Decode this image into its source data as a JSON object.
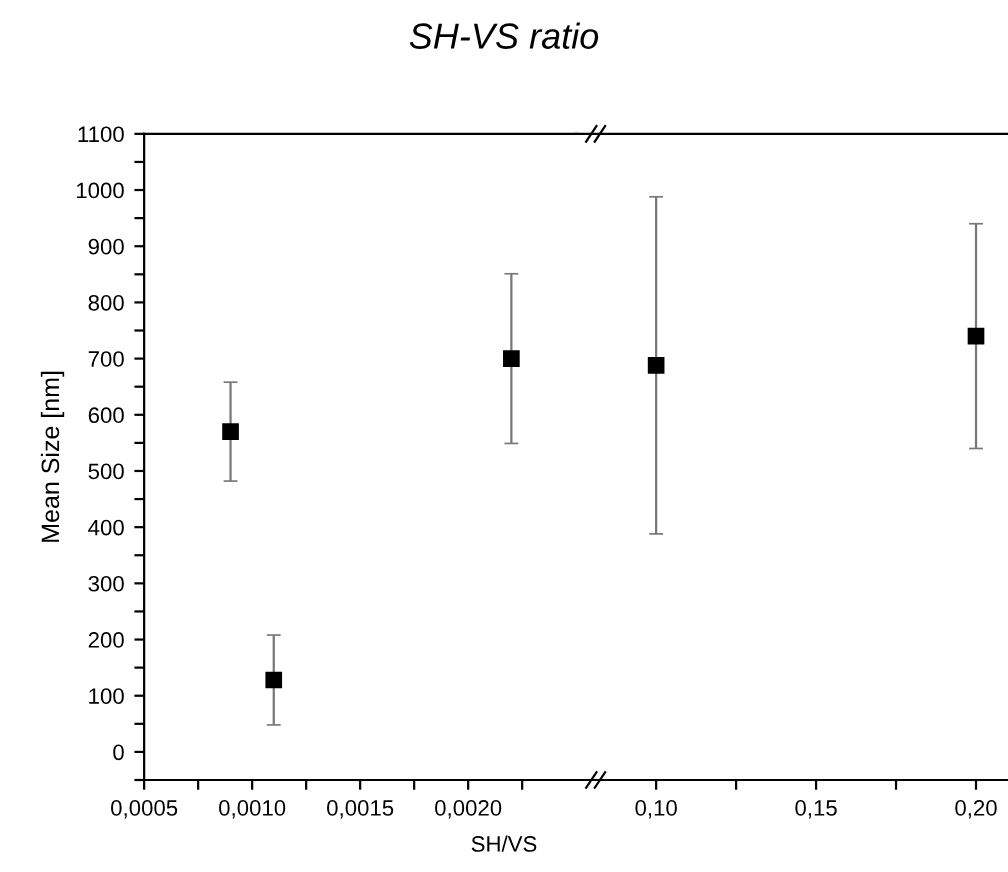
{
  "chart_data": [
    {
      "type": "scatter",
      "title": "SH-VS ratio",
      "xlabel": "SH/VS",
      "ylabel": "Mean Size [nm]",
      "marker": "square",
      "grid": false,
      "x": [
        0.0009,
        0.0011,
        0.0022
      ],
      "series": [
        {
          "color": "#000000",
          "values": [
            570,
            128,
            700
          ],
          "errors": [
            88,
            80,
            151
          ]
        }
      ],
      "xlim": [
        0.0005,
        0.0025
      ],
      "ylim": [
        -50,
        1100
      ],
      "xticks": [
        {
          "value": 0.0005,
          "label": "0,0005"
        },
        {
          "value": 0.00075,
          "label": null
        },
        {
          "value": 0.001,
          "label": "0,0010"
        },
        {
          "value": 0.00125,
          "label": null
        },
        {
          "value": 0.0015,
          "label": "0,0015"
        },
        {
          "value": 0.00175,
          "label": null
        },
        {
          "value": 0.002,
          "label": "0,0020"
        },
        {
          "value": 0.00225,
          "label": null
        }
      ],
      "yticks": [
        {
          "value": -50,
          "label": null
        },
        0,
        {
          "value": 50,
          "label": null
        },
        100,
        {
          "value": 150,
          "label": null
        },
        200,
        {
          "value": 250,
          "label": null
        },
        300,
        {
          "value": 350,
          "label": null
        },
        400,
        {
          "value": 450,
          "label": null
        },
        500,
        {
          "value": 550,
          "label": null
        },
        600,
        {
          "value": 650,
          "label": null
        },
        700,
        {
          "value": 750,
          "label": null
        },
        800,
        {
          "value": 850,
          "label": null
        },
        900,
        {
          "value": 950,
          "label": null
        },
        1000,
        {
          "value": 1050,
          "label": null
        },
        1100
      ]
    },
    {
      "type": "scatter",
      "marker": "square",
      "grid": false,
      "tick_labels": "x",
      "x": [
        0.1,
        0.2
      ],
      "series": [
        {
          "color": "#000000",
          "values": [
            688,
            740
          ],
          "errors": [
            300,
            200
          ]
        }
      ],
      "xlim": [
        0.075,
        0.21
      ],
      "ylim": [
        -50,
        1100
      ],
      "xticks": [
        {
          "value": 0.1,
          "label": "0,10"
        },
        {
          "value": 0.125,
          "label": null
        },
        {
          "value": 0.15,
          "label": "0,15"
        },
        {
          "value": 0.175,
          "label": null
        },
        {
          "value": 0.2,
          "label": "0,20"
        }
      ]
    }
  ]
}
